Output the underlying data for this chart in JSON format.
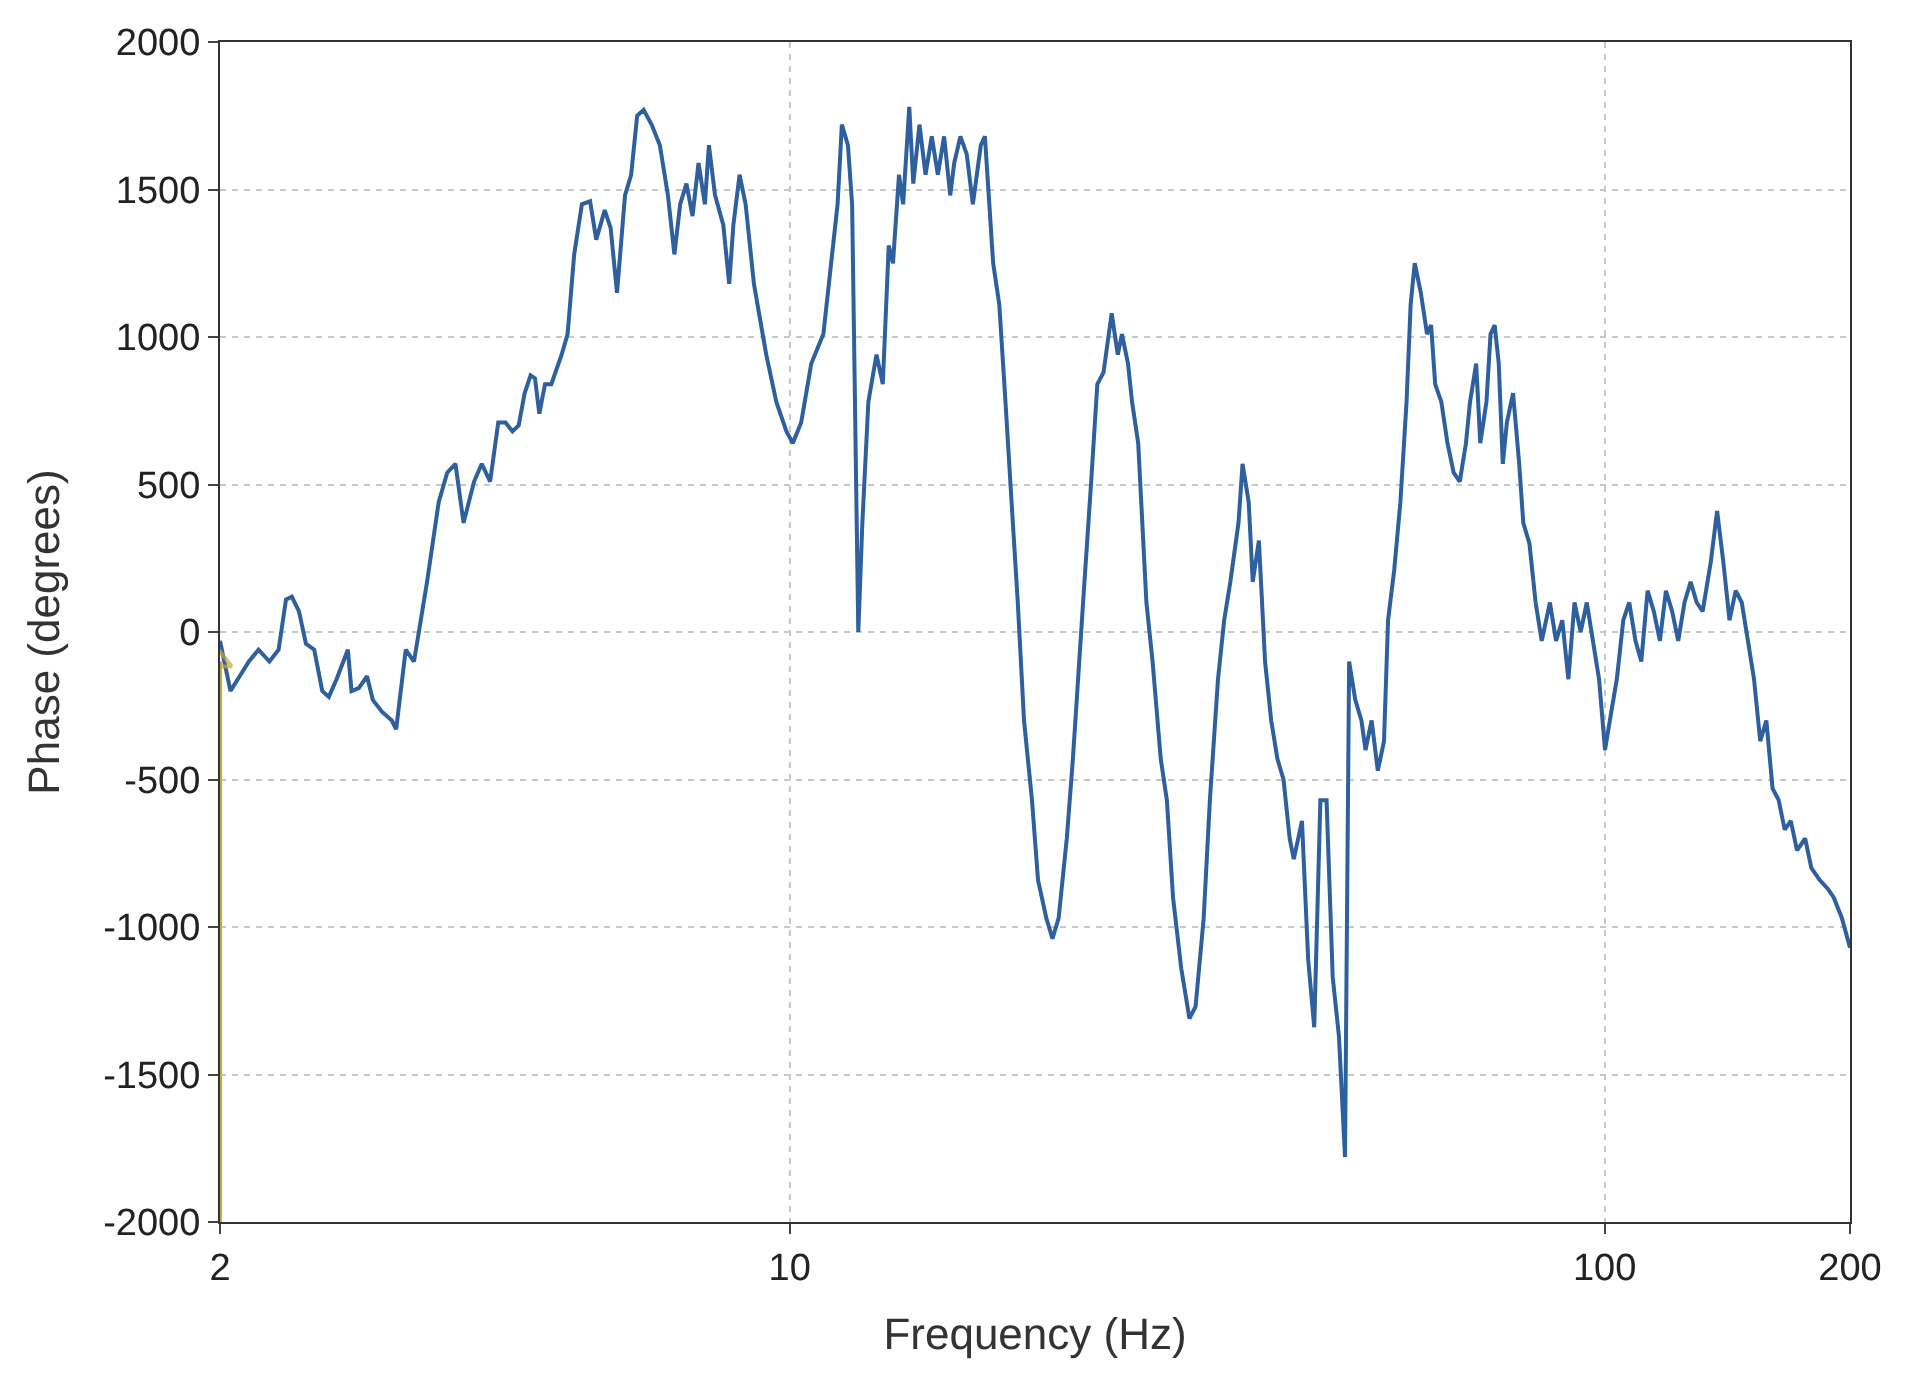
{
  "chart_data": {
    "type": "line",
    "xlabel": "Frequency (Hz)",
    "ylabel": "Phase (degrees)",
    "log": "x",
    "xlim": [
      2,
      200
    ],
    "xticks": [
      2,
      10,
      100,
      200
    ],
    "ylim": [
      -2000,
      2000
    ],
    "yticks": [
      -2000,
      -1500,
      -1000,
      -500,
      0,
      500,
      1000,
      1500,
      2000
    ],
    "grid": true,
    "series": [
      {
        "color": "#2e5f9e",
        "x": [
          2.0,
          2.06,
          2.17,
          2.23,
          2.3,
          2.36,
          2.41,
          2.45,
          2.5,
          2.55,
          2.61,
          2.67,
          2.72,
          2.78,
          2.87,
          2.9,
          2.96,
          3.03,
          3.08,
          3.16,
          3.25,
          3.29,
          3.38,
          3.46,
          3.59,
          3.71,
          3.8,
          3.89,
          3.98,
          4.1,
          4.19,
          4.29,
          4.39,
          4.48,
          4.57,
          4.65,
          4.73,
          4.81,
          4.87,
          4.93,
          5.01,
          5.1,
          5.25,
          5.34,
          5.44,
          5.56,
          5.69,
          5.79,
          5.93,
          6.03,
          6.14,
          6.28,
          6.39,
          6.5,
          6.62,
          6.77,
          6.93,
          7.09,
          7.22,
          7.34,
          7.47,
          7.6,
          7.73,
          7.87,
          7.96,
          8.1,
          8.29,
          8.43,
          8.53,
          8.68,
          8.83,
          9.04,
          9.36,
          9.63,
          9.91,
          10.09,
          10.33,
          10.63,
          11.0,
          11.45,
          11.59,
          11.79,
          11.93,
          12.14,
          12.28,
          12.49,
          12.78,
          13.01,
          13.23,
          13.39,
          13.62,
          13.78,
          14.02,
          14.18,
          14.43,
          14.68,
          14.94,
          15.2,
          15.47,
          15.74,
          15.92,
          16.2,
          16.49,
          16.78,
          17.16,
          17.36,
          17.77,
          18.08,
          18.4,
          18.72,
          19.05,
          19.39,
          19.83,
          20.17,
          20.65,
          21.01,
          21.38,
          21.88,
          22.26,
          22.91,
          23.44,
          23.85,
          24.27,
          24.55,
          24.84,
          25.27,
          25.57,
          26.01,
          26.31,
          26.77,
          27.4,
          27.88,
          28.53,
          29.03,
          29.54,
          30.23,
          30.94,
          31.48,
          32.21,
          32.78,
          33.54,
          34.13,
          34.73,
          35.54,
          35.95,
          36.58,
          37.0,
          37.65,
          38.31,
          38.98,
          39.67,
          40.36,
          41.07,
          41.55,
          42.52,
          43.27,
          44.02,
          44.79,
          45.58,
          46.38,
          47.2,
          48.02,
          48.58,
          49.43,
          50.3,
          50.88,
          51.77,
          52.68,
          53.61,
          54.23,
          55.18,
          56.15,
          57.14,
          57.8,
          58.47,
          59.49,
          60.54,
          61.24,
          61.95,
          63.04,
          64.14,
          65.27,
          66.41,
          67.58,
          68.36,
          69.56,
          70.37,
          71.61,
          72.44,
          73.29,
          74.14,
          74.99,
          75.86,
          77.2,
          78.55,
          79.46,
          80.85,
          82.28,
          83.71,
          85.67,
          87.17,
          88.71,
          90.26,
          91.83,
          93.45,
          95.08,
          96.74,
          98.43,
          100.1,
          101.9,
          103.5,
          105.4,
          107.2,
          109.1,
          110.9,
          112.9,
          114.9,
          116.9,
          118.9,
          121.0,
          123.1,
          125.3,
          127.5,
          129.7,
          131.9,
          135.0,
          137.4,
          139.8,
          142.3,
          144.8,
          147.3,
          149.9,
          152.5,
          155.2,
          157.9,
          160.7,
          163.5,
          166.3,
          169.2,
          172.2,
          176.2,
          179.3,
          183.5,
          187.8,
          191.0,
          195.5,
          200
        ],
        "values": [
          -30,
          -200,
          -100,
          -60,
          -100,
          -60,
          110,
          120,
          70,
          -40,
          -60,
          -200,
          -220,
          -160,
          -60,
          -200,
          -190,
          -150,
          -230,
          -270,
          -300,
          -330,
          -60,
          -100,
          170,
          440,
          540,
          570,
          370,
          510,
          570,
          510,
          710,
          710,
          680,
          700,
          810,
          870,
          860,
          740,
          840,
          840,
          940,
          1010,
          1280,
          1450,
          1460,
          1330,
          1430,
          1370,
          1150,
          1480,
          1550,
          1750,
          1770,
          1720,
          1650,
          1480,
          1280,
          1450,
          1520,
          1410,
          1590,
          1450,
          1650,
          1480,
          1380,
          1180,
          1380,
          1550,
          1450,
          1180,
          940,
          780,
          680,
          640,
          710,
          910,
          1010,
          1450,
          1720,
          1650,
          1450,
          0,
          370,
          780,
          940,
          840,
          1310,
          1250,
          1550,
          1450,
          1780,
          1520,
          1720,
          1550,
          1680,
          1550,
          1680,
          1480,
          1590,
          1680,
          1620,
          1450,
          1650,
          1680,
          1250,
          1110,
          780,
          440,
          100,
          -300,
          -570,
          -840,
          -970,
          -1040,
          -970,
          -700,
          -430,
          100,
          510,
          840,
          880,
          980,
          1080,
          940,
          1010,
          910,
          780,
          640,
          100,
          -100,
          -430,
          -570,
          -900,
          -1140,
          -1310,
          -1270,
          -970,
          -570,
          -160,
          40,
          170,
          370,
          570,
          440,
          170,
          310,
          -100,
          -300,
          -430,
          -500,
          -700,
          -770,
          -640,
          -1110,
          -1340,
          -570,
          -570,
          -1170,
          -1370,
          -1780,
          -100,
          -230,
          -300,
          -400,
          -300,
          -470,
          -370,
          40,
          210,
          440,
          780,
          1110,
          1250,
          1150,
          1010,
          1040,
          840,
          780,
          640,
          540,
          510,
          640,
          780,
          910,
          640,
          780,
          1010,
          1040,
          910,
          570,
          710,
          810,
          570,
          370,
          300,
          100,
          -30,
          100,
          -30,
          40,
          -160,
          100,
          0,
          100,
          -30,
          -160,
          -400,
          -270,
          -160,
          40,
          100,
          -30,
          -100,
          140,
          70,
          -30,
          140,
          70,
          -30,
          100,
          170,
          100,
          70,
          240,
          410,
          240,
          40,
          140,
          100,
          -30,
          -160,
          -370,
          -300,
          -530,
          -570,
          -670,
          -640,
          -740,
          -700,
          -800,
          -840,
          -870,
          -900,
          -970,
          -1070
        ]
      },
      {
        "color": "#c9a73a",
        "x": [
          2,
          2
        ],
        "values": [
          -2000,
          -100
        ],
        "marker": "triangle"
      }
    ]
  }
}
